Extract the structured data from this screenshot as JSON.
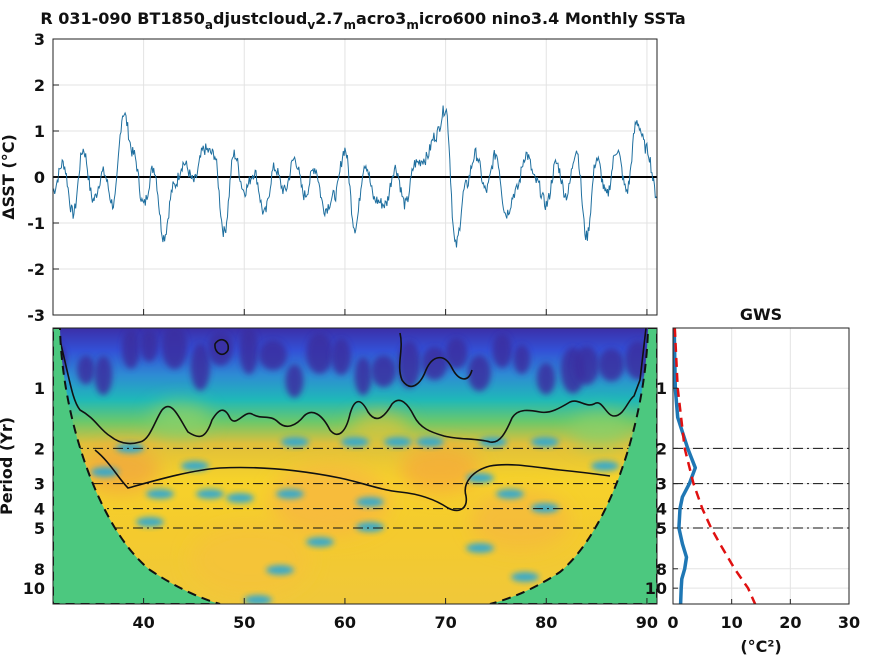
{
  "colors": {
    "series": "#1f6f9f",
    "zero_line": "#000000",
    "cone_fill": "#4cc87f",
    "gws_line": "#1f77b4",
    "significance": "#e01010",
    "grid": "#e3e3e3"
  },
  "chart_data": [
    {
      "type": "line",
      "title_parts": [
        "R 031-090 BT1850",
        "a",
        "djustcloud",
        "v",
        "2.7",
        "m",
        "acro3",
        "m",
        "icro600 nino3.4 Monthly SSTa"
      ],
      "ylabel": "ΔSST (°C)",
      "ylim": [
        -3,
        3
      ],
      "yticks": [
        "3",
        "2",
        "1",
        "0",
        "-1",
        "-2",
        "-3"
      ],
      "xlim": [
        31,
        91
      ],
      "grid": true,
      "zero_line": 0,
      "series_profile": {
        "x": [
          31,
          32,
          33,
          34,
          35,
          36,
          37,
          38,
          39,
          40,
          41,
          42,
          43,
          44,
          45,
          46,
          47,
          48,
          49,
          50,
          51,
          52,
          53,
          54,
          55,
          56,
          57,
          58,
          59,
          60,
          61,
          62,
          63,
          64,
          65,
          66,
          67,
          68,
          69,
          70,
          71,
          72,
          73,
          74,
          75,
          76,
          77,
          78,
          79,
          80,
          81,
          82,
          83,
          84,
          85,
          86,
          87,
          88,
          89,
          90,
          91
        ],
        "y": [
          -0.3,
          0.3,
          -0.8,
          0.6,
          -0.5,
          0.1,
          -0.6,
          1.4,
          0.5,
          -0.6,
          0.2,
          -1.3,
          -0.2,
          0.3,
          -0.1,
          0.6,
          0.5,
          -1.2,
          0.5,
          -0.3,
          0.1,
          -0.8,
          0.2,
          -0.3,
          0.4,
          -0.4,
          0.2,
          -0.7,
          -0.4,
          0.6,
          -1.1,
          0.3,
          -0.5,
          -0.6,
          0.2,
          -0.6,
          0.3,
          0.4,
          0.9,
          1.5,
          -1.5,
          -0.2,
          0.5,
          -0.3,
          0.5,
          -0.8,
          -0.3,
          0.5,
          -0.1,
          -0.6,
          0.3,
          -0.4,
          0.6,
          -1.3,
          0.4,
          -0.4,
          0.6,
          -0.3,
          1.2,
          0.6,
          -0.4
        ]
      }
    },
    {
      "type": "heatmap",
      "ylabel": "Period (Yr)",
      "yscale": "log",
      "period_ticks": [
        1,
        2,
        3,
        4,
        5,
        8,
        10
      ],
      "ylim": [
        0.5,
        12
      ],
      "xticks": [
        40,
        50,
        60,
        70,
        80,
        90
      ],
      "xlim": [
        31,
        91
      ],
      "reference_periods": [
        2,
        3,
        4,
        5
      ],
      "cone_of_influence": true
    },
    {
      "type": "line",
      "title": "GWS",
      "xlabel": "(°C²)",
      "xticks": [
        0,
        10,
        20,
        30
      ],
      "xlim": [
        0,
        30
      ],
      "period_ticks": [
        1,
        2,
        3,
        4,
        5,
        8,
        10
      ],
      "series": [
        {
          "period": [
            0.5,
            1,
            1.4,
            2,
            2.5,
            3,
            3.5,
            4,
            5,
            6,
            7,
            8,
            9,
            10,
            12
          ],
          "power": [
            0.2,
            0.4,
            0.8,
            2.5,
            3.8,
            2.8,
            1.6,
            1.2,
            1.0,
            1.6,
            2.3,
            2.0,
            1.5,
            1.4,
            1.3
          ]
        },
        {
          "period": [
            0.5,
            1,
            2,
            3,
            4,
            5,
            6,
            8,
            10,
            12
          ],
          "power": [
            0.3,
            0.8,
            2.0,
            3.5,
            5.0,
            6.5,
            8.0,
            10.5,
            12.8,
            14.0
          ]
        }
      ]
    }
  ]
}
